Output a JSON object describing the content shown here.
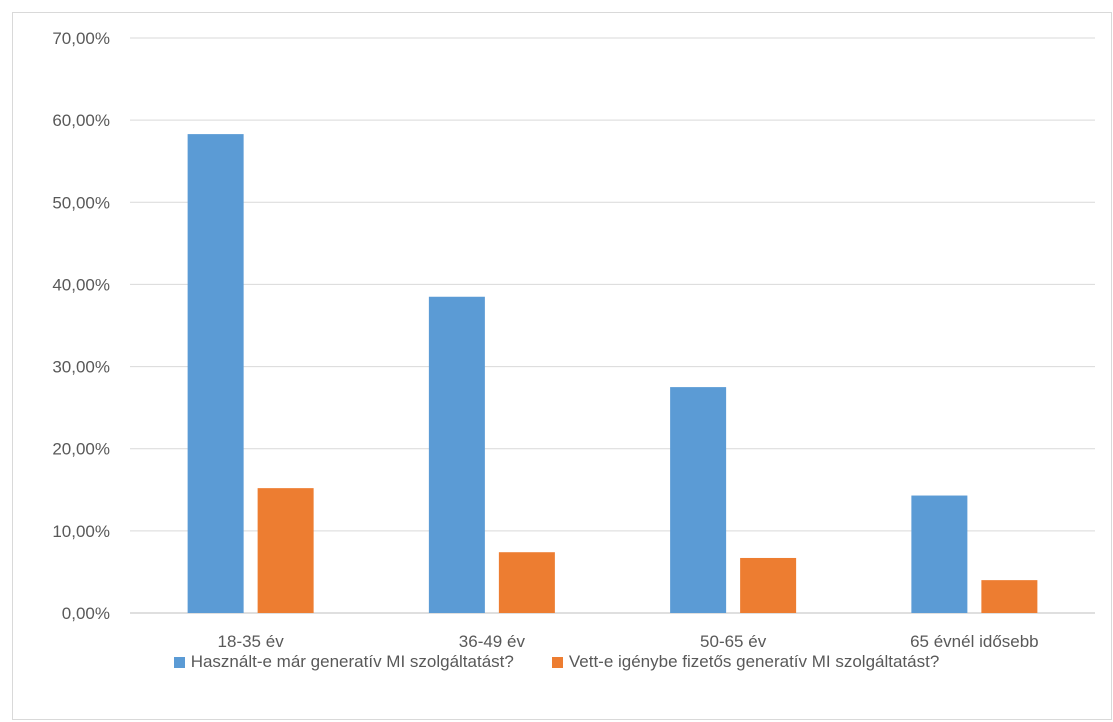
{
  "chart_data": {
    "type": "bar",
    "categories": [
      "18-35 év",
      "36-49 év",
      "50-65 év",
      "65 évnél idősebb"
    ],
    "series": [
      {
        "name": "Használt-e már generatív MI szolgáltatást?",
        "values": [
          58.3,
          38.5,
          27.5,
          14.3
        ],
        "color": "#5b9bd5"
      },
      {
        "name": "Vett-e igénybe fizetős generatív MI szolgáltatást?",
        "values": [
          15.2,
          7.4,
          6.7,
          4.0
        ],
        "color": "#ed7d31"
      }
    ],
    "ylim": [
      0,
      70
    ],
    "yticks": [
      "0,00%",
      "10,00%",
      "20,00%",
      "30,00%",
      "40,00%",
      "50,00%",
      "60,00%",
      "70,00%"
    ],
    "grid": true,
    "legend_position": "bottom",
    "title": "",
    "xlabel": "",
    "ylabel": ""
  }
}
